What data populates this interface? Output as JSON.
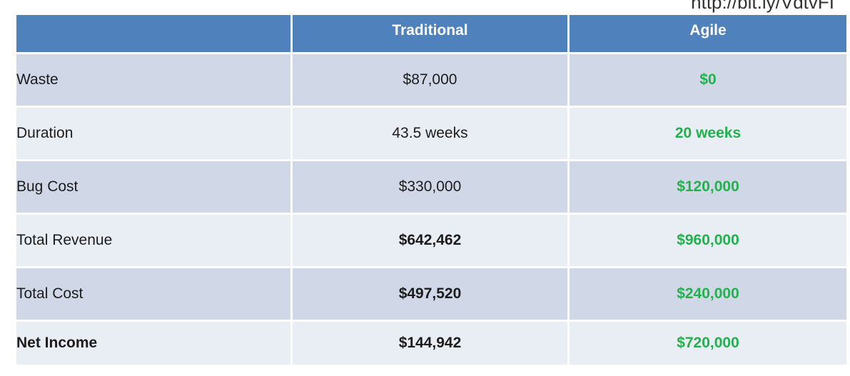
{
  "header": {
    "url": "http://bit.ly/VdtvFI"
  },
  "table": {
    "columns": [
      "",
      "Traditional",
      "Agile"
    ],
    "rows": [
      {
        "label": "Waste",
        "traditional": "$87,000",
        "agile": "$0"
      },
      {
        "label": "Duration",
        "traditional": "43.5 weeks",
        "agile": "20 weeks"
      },
      {
        "label": "Bug Cost",
        "traditional": "$330,000",
        "agile": "$120,000"
      },
      {
        "label": "Total Revenue",
        "traditional": "$642,462",
        "agile": "$960,000"
      },
      {
        "label": "Total Cost",
        "traditional": "$497,520",
        "agile": "$240,000"
      },
      {
        "label": "Net Income",
        "traditional": "$144,942",
        "agile": "$720,000"
      }
    ]
  },
  "colors": {
    "header_bg": "#4f81bd",
    "row_dark": "#d0d8e8",
    "row_light": "#e9edf4",
    "agile_green": "#22b14c"
  }
}
